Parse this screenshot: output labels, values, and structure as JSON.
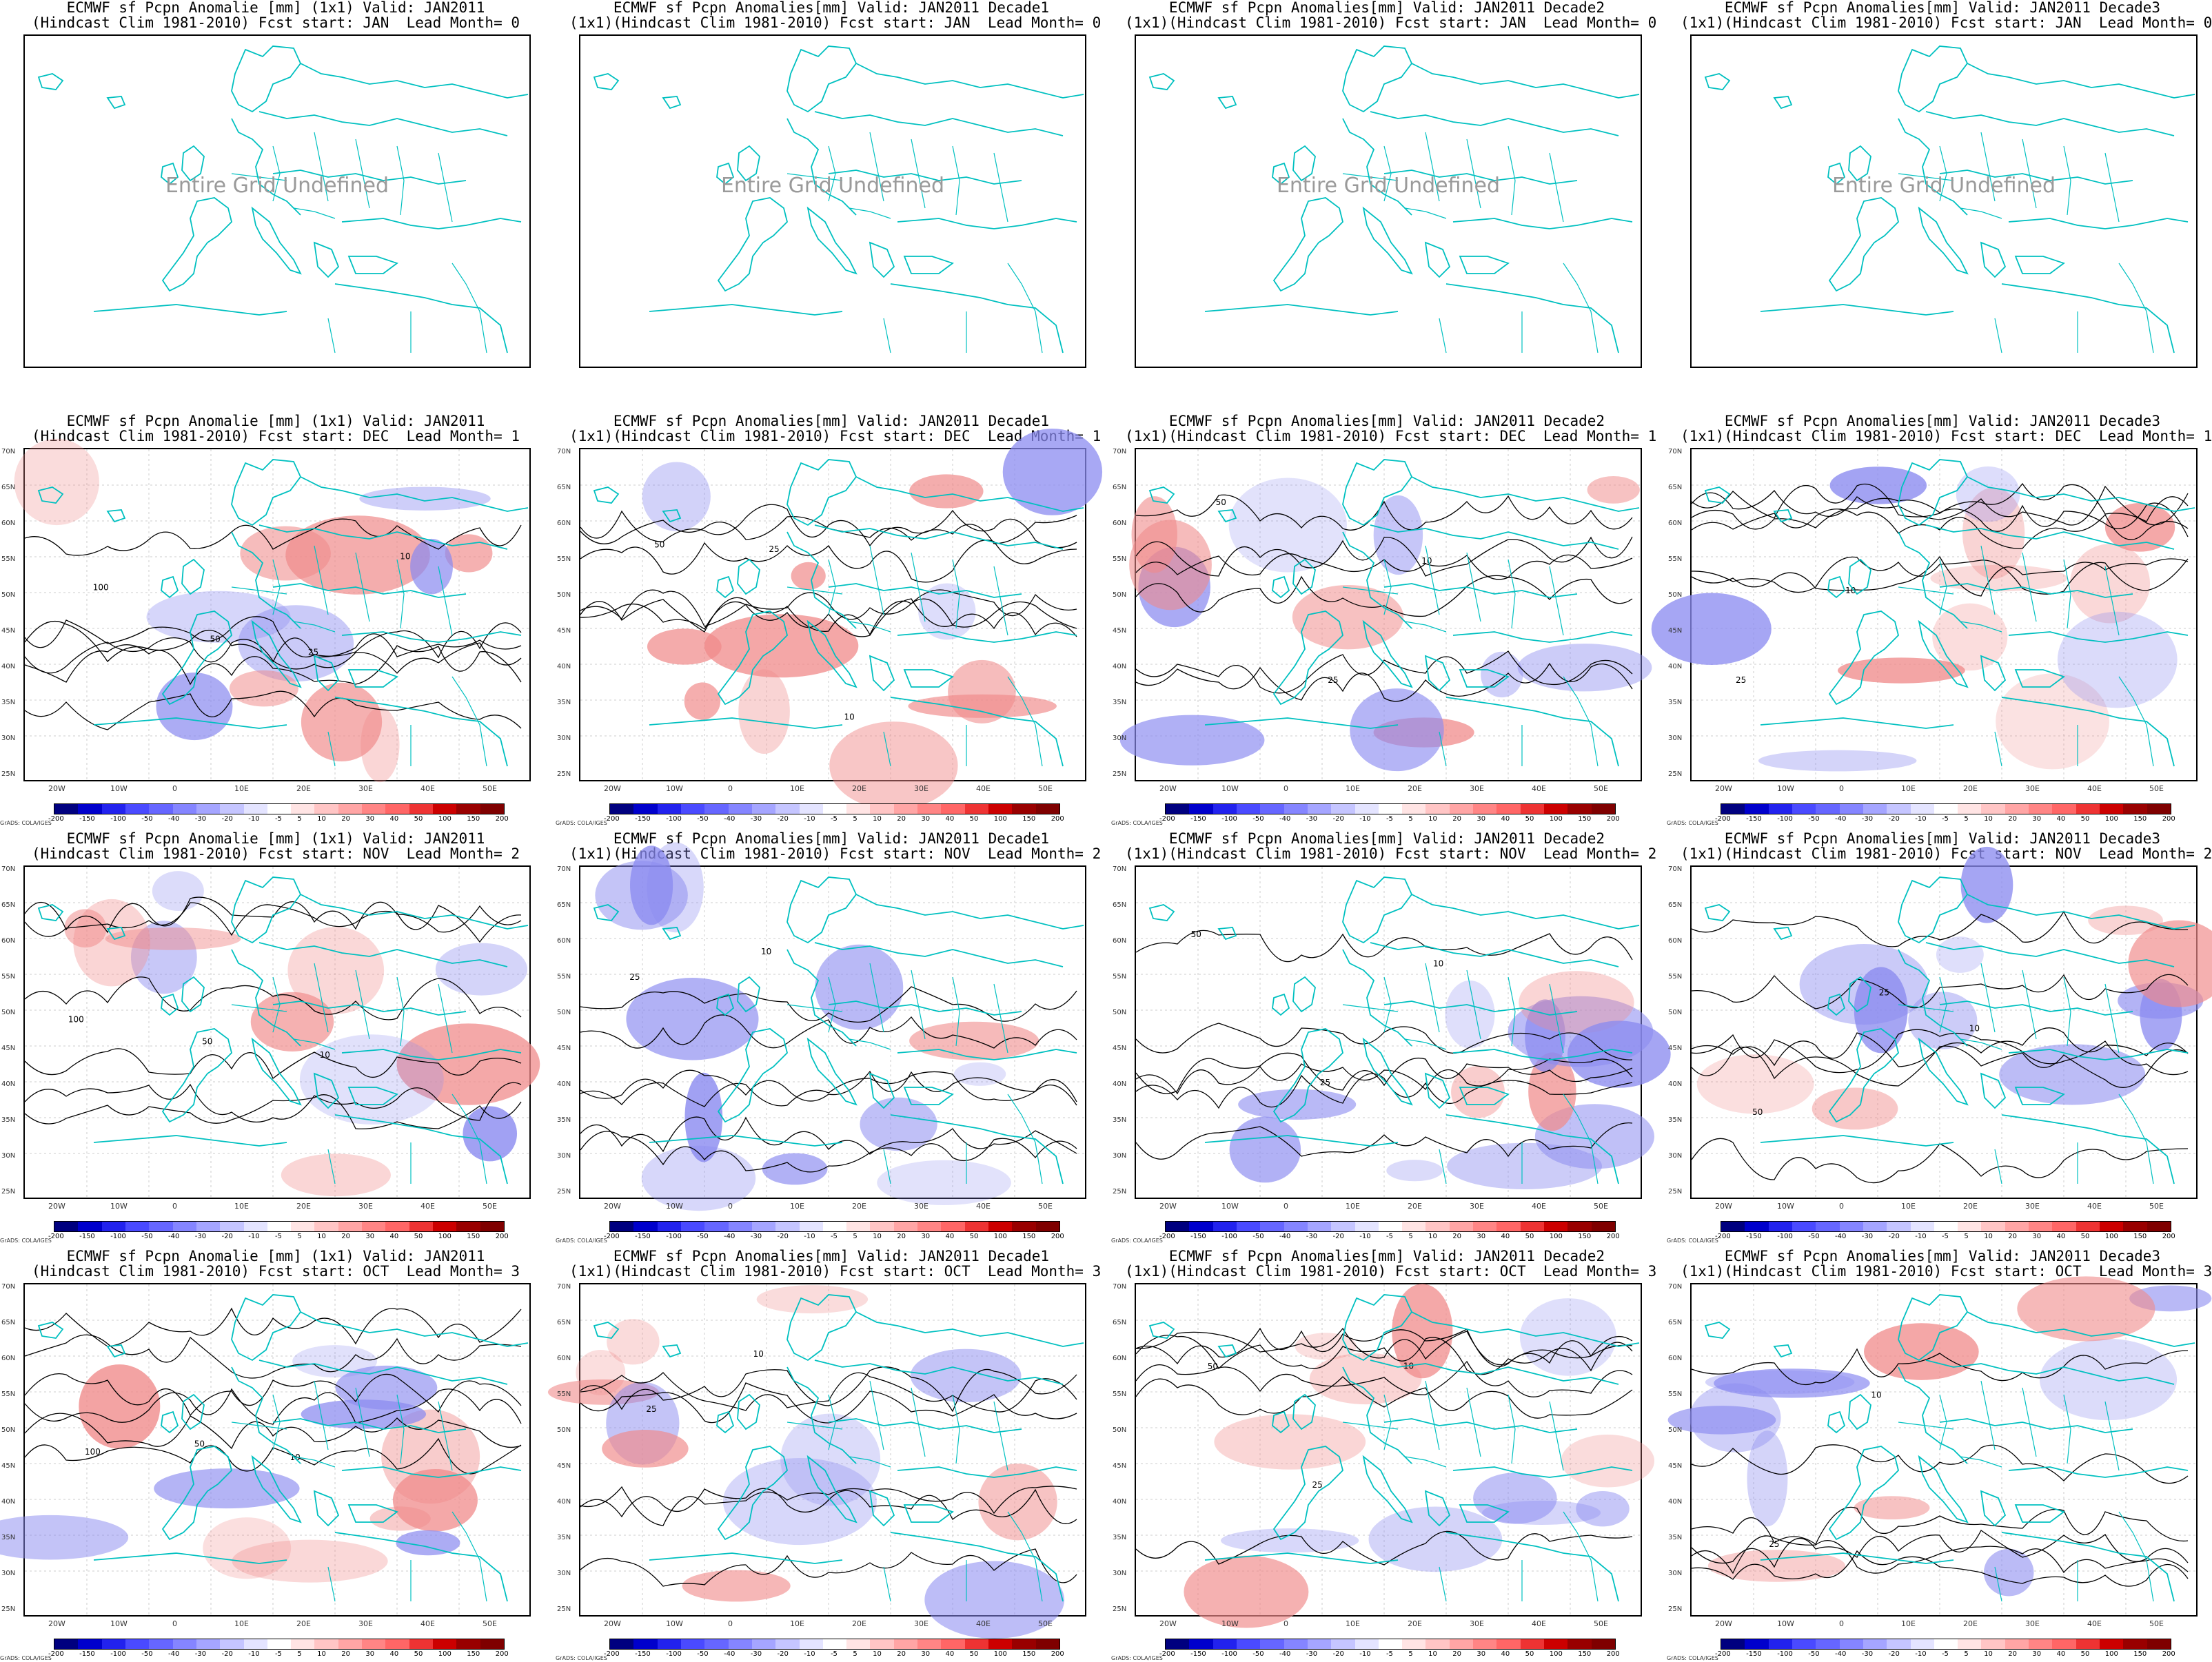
{
  "undefined_text": "Entire Grid Undefined",
  "credit": "GrADS: COLA/IGES",
  "colorbar": {
    "labels": [
      "-200",
      "-150",
      "-100",
      "-50",
      "-40",
      "-30",
      "-20",
      "-10",
      "-5",
      "5",
      "10",
      "20",
      "30",
      "40",
      "50",
      "100",
      "150",
      "200"
    ],
    "colors": [
      "#00007f",
      "#0000cc",
      "#2222ee",
      "#4a4aff",
      "#6666ff",
      "#8585ff",
      "#a5a5ff",
      "#c5c5ff",
      "#e4e4ff",
      "#ffffff",
      "#ffe4e4",
      "#ffc5c5",
      "#ffa5a5",
      "#ff8585",
      "#ff6666",
      "#ee3333",
      "#cc0000",
      "#990000",
      "#7f0000"
    ]
  },
  "lat_labels": [
    "70N",
    "65N",
    "60N",
    "55N",
    "50N",
    "45N",
    "40N",
    "35N",
    "30N",
    "25N"
  ],
  "lon_labels": [
    "20W",
    "10W",
    "0",
    "10E",
    "20E",
    "30E",
    "40E",
    "50E"
  ],
  "coast_color": "#00c0c0",
  "contour_color": "#000000",
  "anomaly_colors": {
    "negative": "#8a8af0",
    "positive": "#f08a8a"
  },
  "rows": [
    {
      "lead": 0,
      "panels": [
        {
          "title1": "ECMWF sf Pcpn Anomalie [mm] (1x1) Valid: JAN2011",
          "title2": "(Hindcast Clim 1981-2010) Fcst start: JAN  Lead Month= 0",
          "undefined": true
        },
        {
          "title1": "ECMWF sf Pcpn Anomalies[mm] Valid: JAN2011 Decade1",
          "title2": "(1x1)(Hindcast Clim 1981-2010) Fcst start: JAN  Lead Month= 0",
          "undefined": true
        },
        {
          "title1": "ECMWF sf Pcpn Anomalies[mm] Valid: JAN2011 Decade2",
          "title2": "(1x1)(Hindcast Clim 1981-2010) Fcst start: JAN  Lead Month= 0",
          "undefined": true
        },
        {
          "title1": "ECMWF sf Pcpn Anomalies[mm] Valid: JAN2011 Decade3",
          "title2": "(1x1)(Hindcast Clim 1981-2010) Fcst start: JAN  Lead Month= 0",
          "undefined": true
        }
      ]
    },
    {
      "lead": 1,
      "panels": [
        {
          "title1": "ECMWF sf Pcpn Anomalie [mm] (1x1) Valid: JAN2011",
          "title2": "(Hindcast Clim 1981-2010) Fcst start: DEC  Lead Month= 1",
          "undefined": false,
          "contour_labels": [
            "100",
            "50",
            "25",
            "10"
          ]
        },
        {
          "title1": "ECMWF sf Pcpn Anomalies[mm] Valid: JAN2011 Decade1",
          "title2": "(1x1)(Hindcast Clim 1981-2010) Fcst start: DEC  Lead Month= 1",
          "undefined": false,
          "contour_labels": [
            "50",
            "25",
            "10"
          ]
        },
        {
          "title1": "ECMWF sf Pcpn Anomalies[mm] Valid: JAN2011 Decade2",
          "title2": "(1x1)(Hindcast Clim 1981-2010) Fcst start: DEC  Lead Month= 1",
          "undefined": false,
          "contour_labels": [
            "50",
            "25",
            "10"
          ]
        },
        {
          "title1": "ECMWF sf Pcpn Anomalies[mm] Valid: JAN2011 Decade3",
          "title2": "(1x1)(Hindcast Clim 1981-2010) Fcst start: DEC  Lead Month= 1",
          "undefined": false,
          "contour_labels": [
            "25",
            "10"
          ]
        }
      ]
    },
    {
      "lead": 2,
      "panels": [
        {
          "title1": "ECMWF sf Pcpn Anomalie [mm] (1x1) Valid: JAN2011",
          "title2": "(Hindcast Clim 1981-2010) Fcst start: NOV  Lead Month= 2",
          "undefined": false,
          "contour_labels": [
            "100",
            "50",
            "10"
          ]
        },
        {
          "title1": "ECMWF sf Pcpn Anomalies[mm] Valid: JAN2011 Decade1",
          "title2": "(1x1)(Hindcast Clim 1981-2010) Fcst start: NOV  Lead Month= 2",
          "undefined": false,
          "contour_labels": [
            "25",
            "10"
          ]
        },
        {
          "title1": "ECMWF sf Pcpn Anomalies[mm] Valid: JAN2011 Decade2",
          "title2": "(1x1)(Hindcast Clim 1981-2010) Fcst start: NOV  Lead Month= 2",
          "undefined": false,
          "contour_labels": [
            "50",
            "25",
            "10"
          ]
        },
        {
          "title1": "ECMWF sf Pcpn Anomalies[mm] Valid: JAN2011 Decade3",
          "title2": "(1x1)(Hindcast Clim 1981-2010) Fcst start: NOV  Lead Month= 2",
          "undefined": false,
          "contour_labels": [
            "50",
            "25",
            "10"
          ]
        }
      ]
    },
    {
      "lead": 3,
      "panels": [
        {
          "title1": "ECMWF sf Pcpn Anomalie [mm] (1x1) Valid: JAN2011",
          "title2": "(Hindcast Clim 1981-2010) Fcst start: OCT  Lead Month= 3",
          "undefined": false,
          "contour_labels": [
            "100",
            "50",
            "10"
          ]
        },
        {
          "title1": "ECMWF sf Pcpn Anomalies[mm] Valid: JAN2011 Decade1",
          "title2": "(1x1)(Hindcast Clim 1981-2010) Fcst start: OCT  Lead Month= 3",
          "undefined": false,
          "contour_labels": [
            "25",
            "10"
          ]
        },
        {
          "title1": "ECMWF sf Pcpn Anomalies[mm] Valid: JAN2011 Decade2",
          "title2": "(1x1)(Hindcast Clim 1981-2010) Fcst start: OCT  Lead Month= 3",
          "undefined": false,
          "contour_labels": [
            "50",
            "25",
            "10"
          ]
        },
        {
          "title1": "ECMWF sf Pcpn Anomalies[mm] Valid: JAN2011 Decade3",
          "title2": "(1x1)(Hindcast Clim 1981-2010) Fcst start: OCT  Lead Month= 3",
          "undefined": false,
          "contour_labels": [
            "25",
            "10"
          ]
        }
      ]
    }
  ]
}
